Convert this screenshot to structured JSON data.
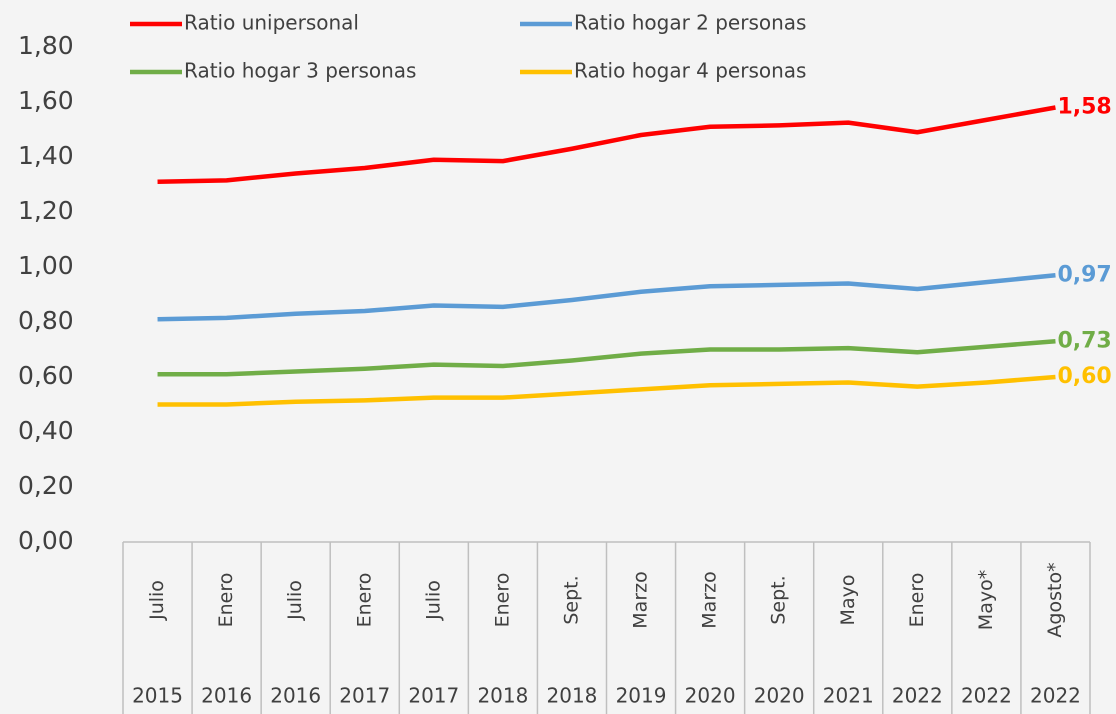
{
  "chart_data": {
    "type": "line",
    "categories": [
      "Julio",
      "Enero",
      "Julio",
      "Enero",
      "Julio",
      "Enero",
      "Sept.",
      "Marzo",
      "Marzo",
      "Sept.",
      "Mayo",
      "Enero",
      "Mayo*",
      "Agosto*"
    ],
    "category_years": [
      "2015",
      "2016",
      "2016",
      "2017",
      "2017",
      "2018",
      "2018",
      "2019",
      "2020",
      "2020",
      "2021",
      "2022",
      "2022",
      "2022"
    ],
    "ylim": [
      0,
      1.8
    ],
    "yticks": [
      {
        "value": 0,
        "label": "0,00"
      },
      {
        "value": 0.2,
        "label": "0,20"
      },
      {
        "value": 0.4,
        "label": "0,40"
      },
      {
        "value": 0.6,
        "label": "0,60"
      },
      {
        "value": 0.8,
        "label": "0,80"
      },
      {
        "value": 1.0,
        "label": "1,00"
      },
      {
        "value": 1.2,
        "label": "1,20"
      },
      {
        "value": 1.4,
        "label": "1,40"
      },
      {
        "value": 1.6,
        "label": "1,60"
      },
      {
        "value": 1.8,
        "label": "1,80"
      }
    ],
    "series": [
      {
        "name": "Ratio unipersonal",
        "color": "#ff0000",
        "values": [
          1.31,
          1.315,
          1.34,
          1.36,
          1.39,
          1.385,
          1.43,
          1.48,
          1.51,
          1.515,
          1.525,
          1.49,
          1.535,
          1.58
        ],
        "value_labels": [
          null,
          null,
          null,
          null,
          null,
          null,
          null,
          null,
          null,
          null,
          null,
          null,
          null,
          "1,58"
        ]
      },
      {
        "name": "Ratio hogar 2 personas",
        "color": "#5b9bd5",
        "values": [
          0.81,
          0.815,
          0.83,
          0.84,
          0.86,
          0.855,
          0.88,
          0.91,
          0.93,
          0.935,
          0.94,
          0.92,
          0.945,
          0.97
        ],
        "value_labels": [
          null,
          null,
          null,
          null,
          null,
          null,
          null,
          null,
          null,
          null,
          null,
          null,
          null,
          "0,97"
        ]
      },
      {
        "name": "Ratio hogar 3 personas",
        "color": "#70ad47",
        "values": [
          0.61,
          0.61,
          0.62,
          0.63,
          0.645,
          0.64,
          0.66,
          0.685,
          0.7,
          0.7,
          0.705,
          0.69,
          0.71,
          0.73
        ],
        "value_labels": [
          null,
          null,
          null,
          null,
          null,
          null,
          null,
          null,
          null,
          null,
          null,
          null,
          null,
          "0,73"
        ]
      },
      {
        "name": "Ratio hogar 4 personas",
        "color": "#ffc000",
        "values": [
          0.5,
          0.5,
          0.51,
          0.515,
          0.525,
          0.525,
          0.54,
          0.555,
          0.57,
          0.575,
          0.58,
          0.565,
          0.58,
          0.6
        ],
        "value_labels": [
          null,
          null,
          null,
          null,
          null,
          null,
          null,
          null,
          null,
          null,
          null,
          null,
          null,
          "0,60"
        ]
      }
    ]
  }
}
